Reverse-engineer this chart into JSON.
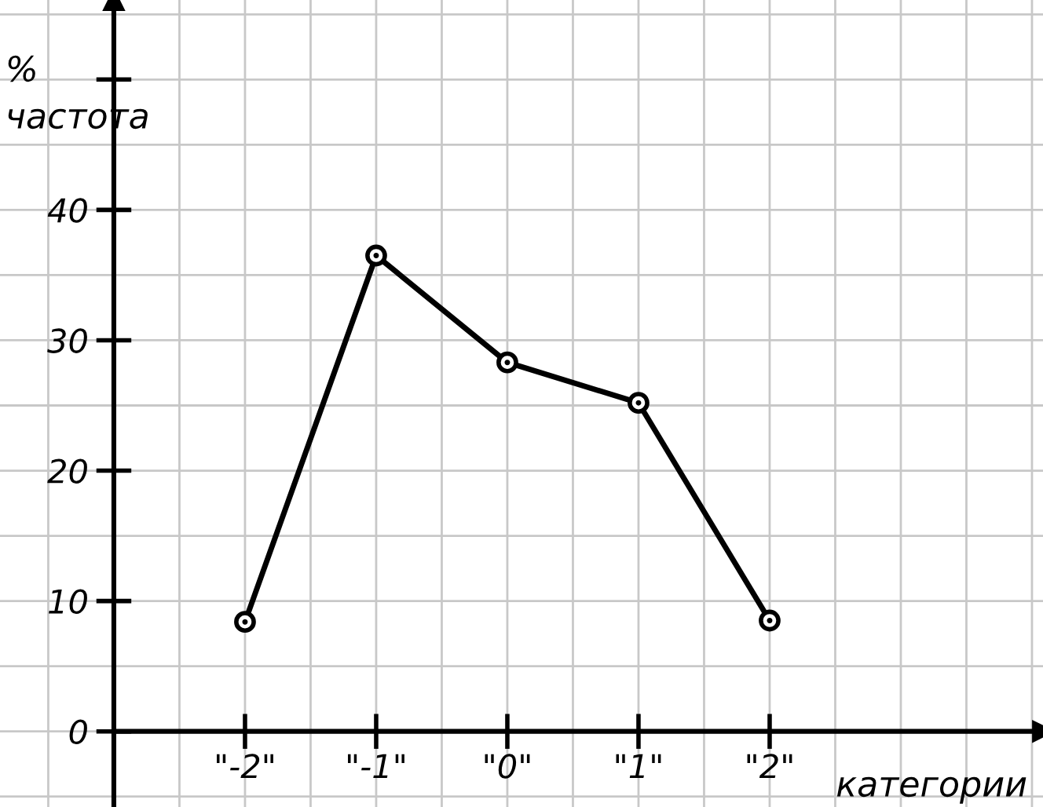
{
  "chart_data": {
    "type": "line",
    "xlabel": "категории",
    "ylabel": "%\nчастота",
    "categories": [
      "\"-2\"",
      "\"-1\"",
      "\"0\"",
      "\"1\"",
      "\"2\""
    ],
    "series": [
      {
        "color": "#000000",
        "values": [
          8.4,
          36.5,
          28.3,
          25.2,
          8.5
        ]
      }
    ],
    "ylim": [
      -5.8,
      56.1
    ],
    "yticks": [
      0,
      10,
      20,
      30,
      40,
      {
        "value": 50,
        "label": null
      }
    ],
    "grid": true,
    "marker": "circle",
    "line_style": "solid",
    "legend": false
  }
}
